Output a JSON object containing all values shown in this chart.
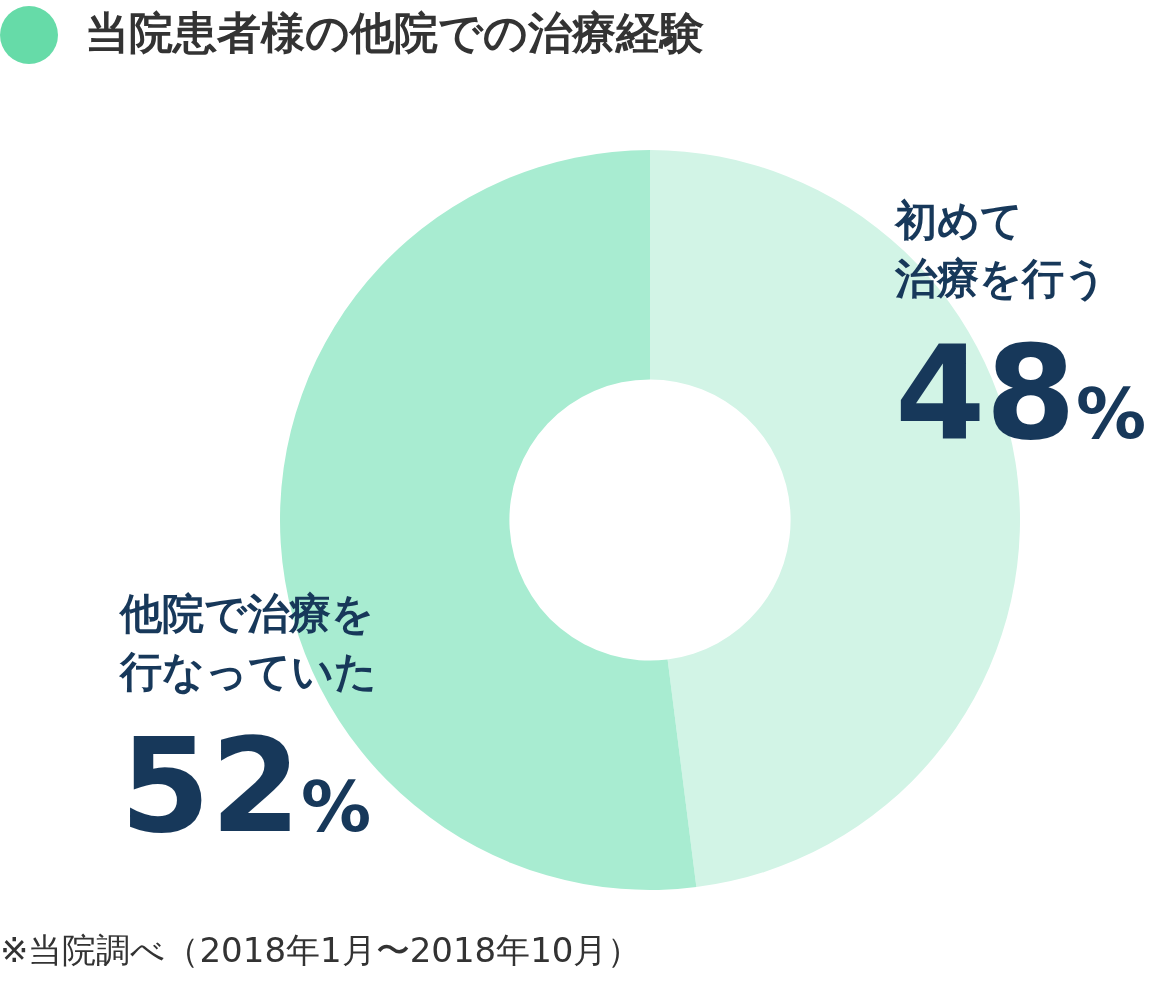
{
  "chart_data": {
    "type": "donut",
    "title": "当院患者様の他院での治療経験",
    "categories": [
      "初めて治療を行う",
      "他院で治療を行なっていた"
    ],
    "values": [
      48,
      52
    ],
    "colors": [
      "#d2f4e6",
      "#a8ecd1"
    ],
    "value_labels": [
      "48%",
      "52%"
    ],
    "legend": false,
    "annotations": [
      "※当院調べ（2018年1月〜2018年10月）"
    ]
  }
}
